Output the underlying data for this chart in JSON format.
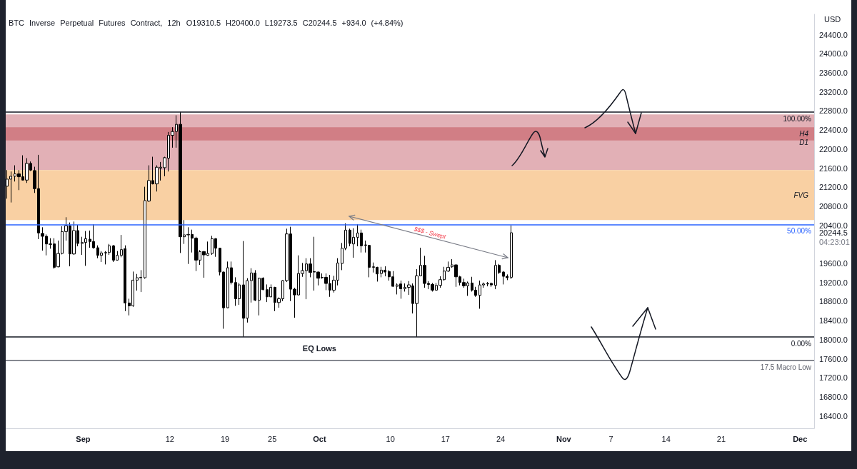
{
  "chart_data": {
    "type": "candlestick",
    "title": "BTC Inverse Perpetual Futures Contract, 12h",
    "subtitle": "O19310.5 H20400.0 L19273.5 C20244.5 +934.0 (+4.84%)",
    "ylabel": "USD",
    "color": "#000000",
    "x": [
      "--08-22T08:00",
      "--08-22T20:00",
      "--08-23T08:00",
      "--08-23T20:00",
      "--08-24T08:00",
      "--08-24T20:00",
      "--08-25T08:00",
      "--08-25T20:00",
      "--08-26T08:00",
      "--08-26T20:00",
      "--08-27T08:00",
      "--08-27T20:00",
      "--08-28T08:00",
      "--08-28T20:00",
      "--08-29T08:00",
      "--08-29T20:00",
      "--08-30T08:00",
      "--08-30T20:00",
      "--08-31T08:00",
      "--08-31T20:00",
      "--09-01T08:00",
      "--09-01T20:00",
      "--09-02T08:00",
      "--09-02T20:00",
      "--09-03T08:00",
      "--09-03T20:00",
      "--09-04T08:00",
      "--09-04T20:00",
      "--09-05T08:00",
      "--09-05T20:00",
      "--09-06T08:00",
      "--09-06T20:00",
      "--09-07T08:00",
      "--09-07T20:00",
      "--09-08T08:00",
      "--09-08T20:00",
      "--09-09T08:00",
      "--09-09T20:00",
      "--09-10T08:00",
      "--09-10T20:00",
      "--09-11T08:00",
      "--09-11T20:00",
      "--09-12T08:00",
      "--09-12T20:00",
      "--09-13T08:00",
      "--09-13T20:00",
      "--09-14T08:00",
      "--09-14T20:00",
      "--09-15T08:00",
      "--09-15T20:00",
      "--09-16T08:00",
      "--09-16T20:00",
      "--09-17T08:00",
      "--09-17T20:00",
      "--09-18T08:00",
      "--09-18T20:00",
      "--09-19T08:00",
      "--09-19T20:00",
      "--09-20T08:00",
      "--09-20T20:00",
      "--09-21T08:00",
      "--09-21T20:00",
      "--09-22T08:00",
      "--09-22T20:00",
      "--09-23T08:00",
      "--09-23T20:00",
      "--09-24T08:00",
      "--09-24T20:00",
      "--09-25T08:00",
      "--09-25T20:00",
      "--09-26T08:00",
      "--09-26T20:00",
      "--09-27T08:00",
      "--09-27T20:00",
      "--09-28T08:00",
      "--09-28T20:00",
      "--09-29T08:00",
      "--09-29T20:00",
      "--09-30T08:00",
      "--09-30T20:00",
      "--10-01T08:00",
      "--10-01T20:00",
      "--10-02T08:00",
      "--10-02T20:00",
      "--10-03T08:00",
      "--10-03T20:00",
      "--10-04T08:00",
      "--10-04T20:00",
      "--10-05T08:00",
      "--10-05T20:00",
      "--10-06T08:00",
      "--10-06T20:00",
      "--10-07T08:00",
      "--10-07T20:00",
      "--10-08T08:00",
      "--10-08T20:00",
      "--10-09T08:00",
      "--10-09T20:00",
      "--10-10T08:00",
      "--10-10T20:00",
      "--10-11T08:00",
      "--10-11T20:00",
      "--10-12T08:00",
      "--10-12T20:00",
      "--10-13T08:00",
      "--10-13T20:00",
      "--10-14T08:00",
      "--10-14T20:00",
      "--10-15T08:00",
      "--10-15T20:00",
      "--10-16T08:00",
      "--10-16T20:00",
      "--10-17T08:00",
      "--10-17T20:00",
      "--10-18T08:00",
      "--10-18T20:00",
      "--10-19T08:00",
      "--10-19T20:00",
      "--10-20T08:00",
      "--10-20T20:00",
      "--10-21T08:00",
      "--10-21T20:00",
      "--10-22T08:00",
      "--10-22T20:00",
      "--10-23T08:00",
      "--10-23T20:00",
      "--10-24T08:00",
      "--10-24T20:00",
      "--10-25T08:00"
    ],
    "ohlc": [
      [
        21220,
        21560,
        20960,
        21370
      ],
      [
        21370,
        21530,
        20880,
        21430
      ],
      [
        21430,
        21660,
        21320,
        21480
      ],
      [
        21480,
        21560,
        21140,
        21420
      ],
      [
        21420,
        21870,
        21340,
        21350
      ],
      [
        21350,
        21810,
        21290,
        21700
      ],
      [
        21700,
        21740,
        21540,
        21560
      ],
      [
        21550,
        21630,
        21080,
        21170
      ],
      [
        21170,
        21880,
        20110,
        20240
      ],
      [
        20230,
        20360,
        19870,
        20170
      ],
      [
        20170,
        20210,
        19770,
        20010
      ],
      [
        20010,
        20130,
        19910,
        20000
      ],
      [
        20010,
        20130,
        19490,
        19520
      ],
      [
        19530,
        20080,
        19520,
        19810
      ],
      [
        19810,
        20380,
        19790,
        20270
      ],
      [
        20270,
        20570,
        20080,
        20390
      ],
      [
        20390,
        20460,
        19540,
        19800
      ],
      [
        19800,
        20480,
        19780,
        20290
      ],
      [
        20290,
        20410,
        19960,
        20020
      ],
      [
        20020,
        20160,
        19780,
        20040
      ],
      [
        20040,
        20280,
        19550,
        20120
      ],
      [
        20110,
        20290,
        19930,
        20060
      ],
      [
        20060,
        20420,
        19910,
        19930
      ],
      [
        19930,
        19980,
        19710,
        19770
      ],
      [
        19770,
        19860,
        19630,
        19820
      ],
      [
        19820,
        19860,
        19580,
        19830
      ],
      [
        19830,
        20010,
        19780,
        19970
      ],
      [
        19970,
        19990,
        19630,
        19670
      ],
      [
        19670,
        19860,
        19660,
        19770
      ],
      [
        19770,
        20200,
        19730,
        19890
      ],
      [
        19910,
        19980,
        18600,
        18770
      ],
      [
        18770,
        18860,
        18510,
        18710
      ],
      [
        18710,
        19430,
        18690,
        19250
      ],
      [
        19250,
        19380,
        19030,
        19300
      ],
      [
        19300,
        19460,
        19000,
        19310
      ],
      [
        19300,
        21210,
        19280,
        20920
      ],
      [
        20910,
        21660,
        20890,
        21340
      ],
      [
        21340,
        21840,
        21260,
        21270
      ],
      [
        21270,
        21660,
        21110,
        21620
      ],
      [
        21600,
        21730,
        21340,
        21620
      ],
      [
        21610,
        21840,
        21430,
        21820
      ],
      [
        21810,
        22360,
        21530,
        22290
      ],
      [
        22290,
        22460,
        22030,
        22370
      ],
      [
        22370,
        22710,
        22030,
        22520
      ],
      [
        22520,
        22780,
        19820,
        20160
      ],
      [
        20160,
        20510,
        20010,
        20200
      ],
      [
        20200,
        20360,
        19590,
        20210
      ],
      [
        20210,
        20310,
        19830,
        20130
      ],
      [
        20130,
        20160,
        19440,
        19670
      ],
      [
        19670,
        19880,
        19570,
        19850
      ],
      [
        19850,
        19860,
        19300,
        19780
      ],
      [
        19770,
        20060,
        19760,
        19810
      ],
      [
        19810,
        20180,
        19780,
        20120
      ],
      [
        20120,
        20130,
        19740,
        19920
      ],
      [
        19920,
        19930,
        19350,
        19420
      ],
      [
        19420,
        19430,
        18230,
        18670
      ],
      [
        18670,
        19640,
        18660,
        19510
      ],
      [
        19510,
        19640,
        19160,
        19200
      ],
      [
        19200,
        19310,
        18710,
        18860
      ],
      [
        18860,
        19190,
        18730,
        19150
      ],
      [
        19150,
        20070,
        18060,
        18450
      ],
      [
        18450,
        19290,
        18360,
        19240
      ],
      [
        19240,
        19500,
        18780,
        19400
      ],
      [
        19400,
        19460,
        18810,
        18830
      ],
      [
        18830,
        19300,
        18510,
        19290
      ],
      [
        19290,
        19310,
        19040,
        19050
      ],
      [
        19050,
        19160,
        18790,
        18900
      ],
      [
        18900,
        19160,
        18890,
        19100
      ],
      [
        19100,
        19110,
        18600,
        18780
      ],
      [
        18780,
        18890,
        18670,
        18860
      ],
      [
        18860,
        19250,
        18810,
        19240
      ],
      [
        19240,
        20330,
        19210,
        20220
      ],
      [
        20220,
        20370,
        18810,
        19060
      ],
      [
        19060,
        19090,
        18460,
        18940
      ],
      [
        18940,
        19770,
        18930,
        19390
      ],
      [
        19390,
        19610,
        19320,
        19450
      ],
      [
        19450,
        19710,
        18850,
        19590
      ],
      [
        19590,
        19710,
        19310,
        19410
      ],
      [
        19430,
        20160,
        19030,
        19420
      ],
      [
        19420,
        19430,
        19140,
        19290
      ],
      [
        19310,
        19390,
        19280,
        19300
      ],
      [
        19310,
        19390,
        19040,
        19180
      ],
      [
        19180,
        19360,
        18900,
        19040
      ],
      [
        19040,
        19340,
        18990,
        19250
      ],
      [
        19250,
        19710,
        19140,
        19610
      ],
      [
        19600,
        20030,
        19460,
        19920
      ],
      [
        19920,
        20440,
        19880,
        20300
      ],
      [
        20300,
        20330,
        19960,
        20020
      ],
      [
        20010,
        20340,
        19720,
        20150
      ],
      [
        20150,
        20420,
        19960,
        20240
      ],
      [
        20240,
        20310,
        19830,
        19970
      ],
      [
        19990,
        20080,
        19830,
        19980
      ],
      [
        19980,
        19990,
        19310,
        19520
      ],
      [
        19520,
        19620,
        19410,
        19530
      ],
      [
        19520,
        19530,
        19220,
        19380
      ],
      [
        19390,
        19530,
        19310,
        19460
      ],
      [
        19460,
        19540,
        19330,
        19420
      ],
      [
        19430,
        19460,
        19240,
        19320
      ],
      [
        19320,
        19440,
        19110,
        19120
      ],
      [
        19120,
        19180,
        18950,
        19150
      ],
      [
        19170,
        19240,
        18860,
        19070
      ],
      [
        19070,
        19180,
        19010,
        19100
      ],
      [
        19100,
        19230,
        18940,
        19150
      ],
      [
        19130,
        19180,
        18550,
        18760
      ],
      [
        18760,
        19480,
        18060,
        19340
      ],
      [
        19340,
        19930,
        19330,
        19560
      ],
      [
        19560,
        19760,
        19090,
        19180
      ],
      [
        19180,
        19230,
        19060,
        19160
      ],
      [
        19160,
        19190,
        19010,
        19040
      ],
      [
        19040,
        19190,
        19030,
        19140
      ],
      [
        19140,
        19330,
        19090,
        19260
      ],
      [
        19260,
        19530,
        19240,
        19440
      ],
      [
        19440,
        19640,
        19420,
        19520
      ],
      [
        19530,
        19690,
        19510,
        19570
      ],
      [
        19570,
        19580,
        19110,
        19320
      ],
      [
        19320,
        19340,
        19140,
        19200
      ],
      [
        19200,
        19280,
        19090,
        19130
      ],
      [
        19130,
        19220,
        18920,
        19190
      ],
      [
        19190,
        19320,
        19010,
        19040
      ],
      [
        19040,
        19110,
        18900,
        18930
      ],
      [
        18930,
        19240,
        18650,
        19150
      ],
      [
        19150,
        19200,
        19090,
        19170
      ],
      [
        19170,
        19210,
        19120,
        19180
      ],
      [
        19180,
        19200,
        19110,
        19150
      ],
      [
        19140,
        19670,
        19060,
        19560
      ],
      [
        19560,
        19590,
        19380,
        19410
      ],
      [
        19420,
        19440,
        19160,
        19330
      ],
      [
        19330,
        19370,
        19250,
        19300
      ],
      [
        19310.5,
        20400.0,
        19273.5,
        20244.5
      ]
    ],
    "xlim": [
      "--08-22T04:00",
      "--12-02T19:00"
    ],
    "xticks": [
      {
        "value": "--09-01",
        "label": "Sep"
      },
      {
        "value": "--09-12",
        "label": "12"
      },
      {
        "value": "--09-19",
        "label": "19"
      },
      {
        "value": "--09-25",
        "label": "25"
      },
      {
        "value": "--10-01",
        "label": "Oct"
      },
      {
        "value": "--10-10",
        "label": "10"
      },
      {
        "value": "--10-17",
        "label": "17"
      },
      {
        "value": "--10-24",
        "label": "24"
      },
      {
        "value": "--11-01",
        "label": "Nov"
      },
      {
        "value": "--11-07",
        "label": "7"
      },
      {
        "value": "--11-14",
        "label": "14"
      },
      {
        "value": "--11-21",
        "label": "21"
      },
      {
        "value": "--12-01",
        "label": "Dec"
      }
    ],
    "ylim": [
      16140,
      24830
    ],
    "yticks": [
      {
        "value": 16400,
        "label": "16400.0"
      },
      {
        "value": 16800,
        "label": "16800.0"
      },
      {
        "value": 17200,
        "label": "17200.0"
      },
      {
        "value": 17600,
        "label": "17600.0"
      },
      {
        "value": 18000,
        "label": "18000.0"
      },
      {
        "value": 18400,
        "label": "18400.0"
      },
      {
        "value": 18800,
        "label": "18800.0"
      },
      {
        "value": 19200,
        "label": "19200.0"
      },
      {
        "value": 19600,
        "label": "19600.0"
      },
      20244.5,
      {
        "value": 20400,
        "label": "20400.0"
      },
      {
        "value": 20800,
        "label": "20800.0"
      },
      {
        "value": 21200,
        "label": "21200.0"
      },
      {
        "value": 21600,
        "label": "21600.0"
      },
      {
        "value": 22000,
        "label": "22000.0"
      },
      {
        "value": 22400,
        "label": "22400.0"
      },
      {
        "value": 22800,
        "label": "22800.0"
      },
      {
        "value": 23200,
        "label": "23200.0"
      },
      {
        "value": 23600,
        "label": "23600.0"
      },
      {
        "value": 24000,
        "label": "24000.0"
      },
      {
        "value": 24400,
        "label": "24400.0"
      }
    ],
    "bands": [
      {
        "axis": "y",
        "from": 21560,
        "to": 22730,
        "label": "D1",
        "color": "#e2b0b6"
      },
      {
        "axis": "y",
        "from": 22180,
        "to": 22460,
        "label": "H4",
        "color": "#d17e85"
      },
      {
        "axis": "y",
        "from": 20510,
        "to": 21560,
        "label": "FVG",
        "color": "#f9d0a3"
      }
    ],
    "ref_lines": [
      {
        "axis": "y",
        "value": 22780,
        "color": "#131722"
      },
      {
        "axis": "y",
        "value": 20420,
        "color": "#2962ff"
      },
      {
        "axis": "y",
        "value": 18060,
        "color": "#131722"
      },
      {
        "axis": "y",
        "value": 17560,
        "label": "17.5 Macro Low",
        "color": "#5d606b"
      }
    ],
    "annotations": [
      "04:23:01",
      "$$$ - Swept",
      {
        "text": "EQ Lows",
        "x": "--10-01",
        "y": 18060
      },
      {
        "text": "100.00%",
        "y": 22780
      },
      {
        "text": "50.00%",
        "y": 20420
      },
      {
        "text": "0.00%",
        "y": 18060
      }
    ]
  }
}
